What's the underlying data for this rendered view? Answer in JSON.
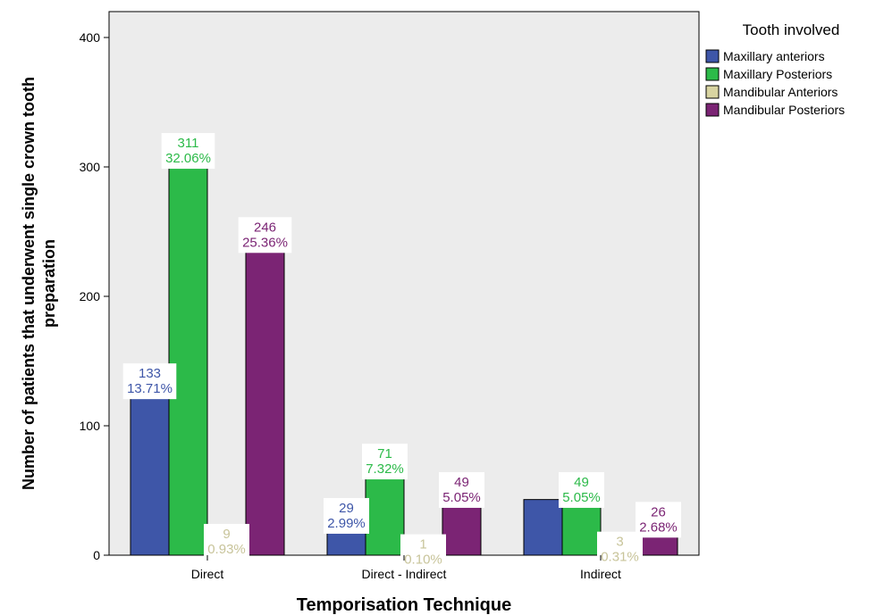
{
  "chart_data": {
    "type": "bar",
    "title": "",
    "xlabel": "Temporisation Technique",
    "ylabel": "Number of patients that underwent single crown tooth preparation",
    "ylim": [
      0,
      420
    ],
    "yticks": [
      0,
      100,
      200,
      300,
      400
    ],
    "categories": [
      "Direct",
      "Direct - Indirect",
      "Indirect"
    ],
    "legend": {
      "title": "Tooth involved",
      "placement": "right"
    },
    "grid": false,
    "background_color": "#ececec",
    "series": [
      {
        "name": "Maxillary anteriors",
        "color": "#3e56a8",
        "label_color": "#3e56a8",
        "values": [
          133,
          29,
          43
        ],
        "labels": [
          "133\n13.71%",
          "29\n2.99%",
          ""
        ]
      },
      {
        "name": "Maxillary Posteriors",
        "color": "#2cba49",
        "label_color": "#2cba49",
        "values": [
          311,
          71,
          49
        ],
        "labels": [
          "311\n32.06%",
          "71\n7.32%",
          "49\n5.05%"
        ]
      },
      {
        "name": "Mandibular Anteriors",
        "color": "#d8d4a1",
        "label_color": "#c8c49a",
        "values": [
          9,
          1,
          3
        ],
        "labels": [
          "9\n0.93%",
          "1\n0.10%",
          "3\n0.31%"
        ]
      },
      {
        "name": "Mandibular Posteriors",
        "color": "#7b2474",
        "label_color": "#7b2474",
        "values": [
          246,
          49,
          26
        ],
        "labels": [
          "246\n25.36%",
          "49\n5.05%",
          "26\n2.68%"
        ]
      }
    ]
  }
}
